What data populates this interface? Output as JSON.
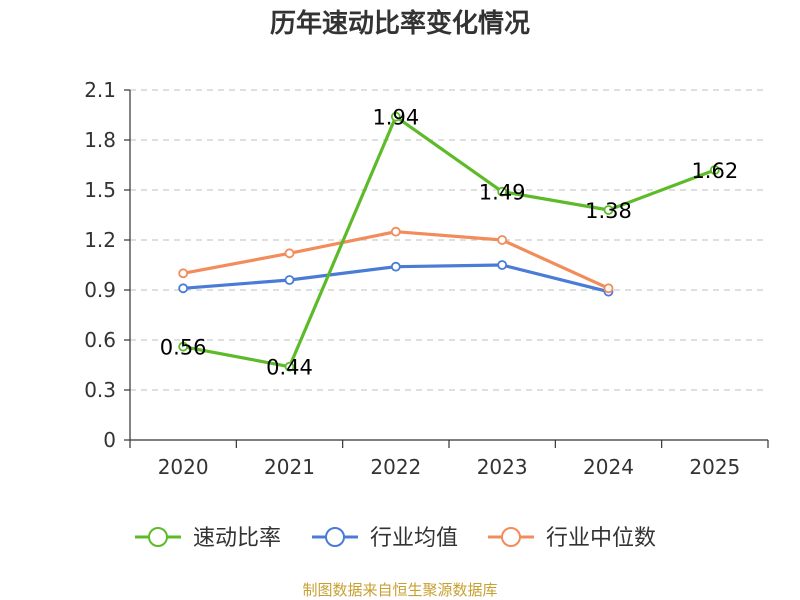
{
  "chart_data": {
    "type": "line",
    "title": "历年速动比率变化情况",
    "xlabel": "",
    "ylabel": "",
    "categories": [
      "2020",
      "2021",
      "2022",
      "2023",
      "2024",
      "2025"
    ],
    "y_ticks": [
      "0",
      "0.3",
      "0.6",
      "0.9",
      "1.2",
      "1.5",
      "1.8",
      "2.1"
    ],
    "ylim": [
      0,
      2.1
    ],
    "grid": true,
    "legend_position": "bottom",
    "series": [
      {
        "name": "速动比率",
        "color": "#5dbb2a",
        "values": [
          0.56,
          0.44,
          1.94,
          1.49,
          1.38,
          1.62
        ],
        "labels": [
          "0.56",
          "0.44",
          "1.94",
          "1.49",
          "1.38",
          "1.62"
        ]
      },
      {
        "name": "行业均值",
        "color": "#4a7bd6",
        "values": [
          0.91,
          0.96,
          1.04,
          1.05,
          0.89,
          null
        ]
      },
      {
        "name": "行业中位数",
        "color": "#f28c5a",
        "values": [
          1.0,
          1.12,
          1.25,
          1.2,
          0.91,
          null
        ]
      }
    ],
    "source": "制图数据来自恒生聚源数据库"
  }
}
